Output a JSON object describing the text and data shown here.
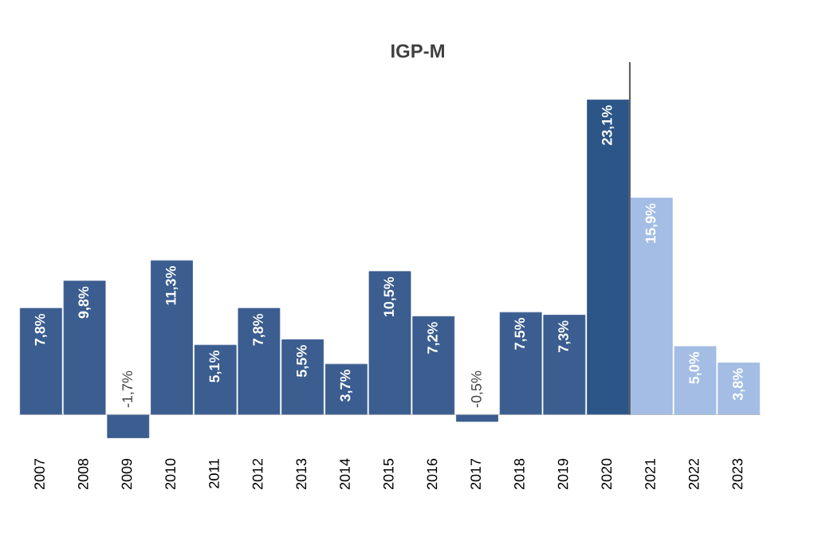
{
  "chart_data": {
    "type": "bar",
    "title": "IGP-M",
    "categories": [
      "2007",
      "2008",
      "2009",
      "2010",
      "2011",
      "2012",
      "2013",
      "2014",
      "2015",
      "2016",
      "2017",
      "2018",
      "2019",
      "2020",
      "2021",
      "2022",
      "2023"
    ],
    "values": [
      7.8,
      9.8,
      -1.7,
      11.3,
      5.1,
      7.8,
      5.5,
      3.7,
      10.5,
      7.2,
      -0.5,
      7.5,
      7.3,
      23.1,
      15.9,
      5.0,
      3.8
    ],
    "value_labels": [
      "7,8%",
      "9,8%",
      "-1,7%",
      "11,3%",
      "5,1%",
      "7,8%",
      "5,5%",
      "3,7%",
      "10,5%",
      "7,2%",
      "-0,5%",
      "7,5%",
      "7,3%",
      "23,1%",
      "15,9%",
      "5,0%",
      "3,8%"
    ],
    "colors": [
      "#3b5d8f",
      "#3b5d8f",
      "#3b5d8f",
      "#3b5d8f",
      "#3b5d8f",
      "#3b5d8f",
      "#3b5d8f",
      "#3b5d8f",
      "#3b5d8f",
      "#3b5d8f",
      "#3b5d8f",
      "#3b5d8f",
      "#3b5d8f",
      "#2c5688",
      "#a3bde4",
      "#a3bde4",
      "#a3bde4"
    ]
  }
}
